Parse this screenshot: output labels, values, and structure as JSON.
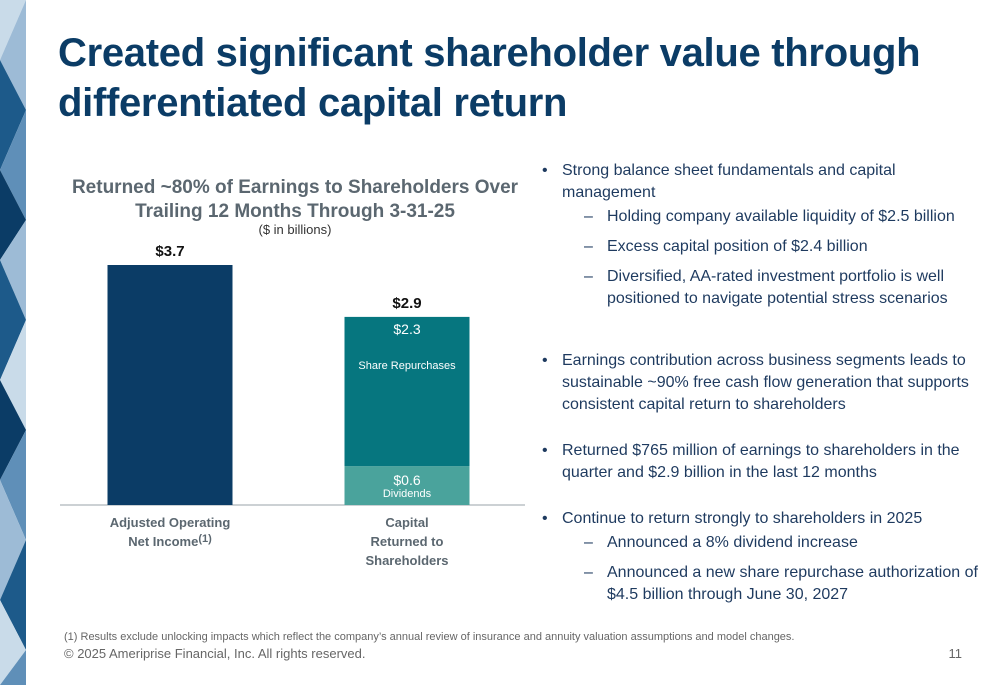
{
  "slide": {
    "title": "Created significant shareholder value through differentiated capital return"
  },
  "colors": {
    "navy": "#0b3c66",
    "teal": "#06767f",
    "light_teal": "#4aa39c",
    "axis": "#9aa3aa",
    "deco": [
      "#0b3c66",
      "#1d5a8a",
      "#5f8fb8",
      "#9dbbd6",
      "#c9dbe9"
    ]
  },
  "chart_data": {
    "type": "bar",
    "title": "Returned ~80% of Earnings to Shareholders Over Trailing 12 Months Through 3-31-25",
    "unit_label": "($ in billions)",
    "ylim": [
      0,
      3.7
    ],
    "categories": [
      "Adjusted Operating Net Income(1)",
      "Capital Returned to Shareholders"
    ],
    "bars": [
      {
        "category_lines": [
          "Adjusted Operating",
          "Net Income"
        ],
        "superscript": "(1)",
        "total": 3.7,
        "total_label": "$3.7",
        "segments": [
          {
            "value": 3.7,
            "color": "#0b3c66",
            "label": "",
            "name": ""
          }
        ]
      },
      {
        "category_lines": [
          "Capital",
          "Returned to",
          "Shareholders"
        ],
        "superscript": "",
        "total": 2.9,
        "total_label": "$2.9",
        "segments": [
          {
            "value": 0.6,
            "color": "#4aa39c",
            "label": "$0.6",
            "name": "Dividends"
          },
          {
            "value": 2.3,
            "color": "#06767f",
            "label": "$2.3",
            "name": "Share Repurchases"
          }
        ]
      }
    ],
    "grid": false
  },
  "bullets": [
    {
      "text": "Strong balance sheet fundamentals and capital management",
      "subs": [
        "Holding company available liquidity of $2.5 billion",
        "Excess capital position of $2.4 billion",
        "Diversified, AA-rated investment portfolio is well positioned to navigate potential stress scenarios"
      ]
    },
    {
      "text": "Earnings contribution across business segments leads to sustainable ~90% free cash flow generation that supports consistent capital return to shareholders",
      "subs": []
    },
    {
      "text": "Returned $765 million of earnings to shareholders in the quarter and $2.9 billion in the last 12 months",
      "subs": []
    },
    {
      "text": "Continue to return strongly to shareholders in 2025",
      "subs": [
        "Announced a 8% dividend increase",
        "Announced a new share repurchase authorization of $4.5 billion through June 30, 2027"
      ]
    }
  ],
  "footer": {
    "footnote": "(1) Results exclude unlocking impacts which reflect the company’s annual review of insurance and annuity valuation assumptions and model changes.",
    "copyright": "© 2025 Ameriprise Financial, Inc. All rights reserved.",
    "page_number": "11"
  }
}
